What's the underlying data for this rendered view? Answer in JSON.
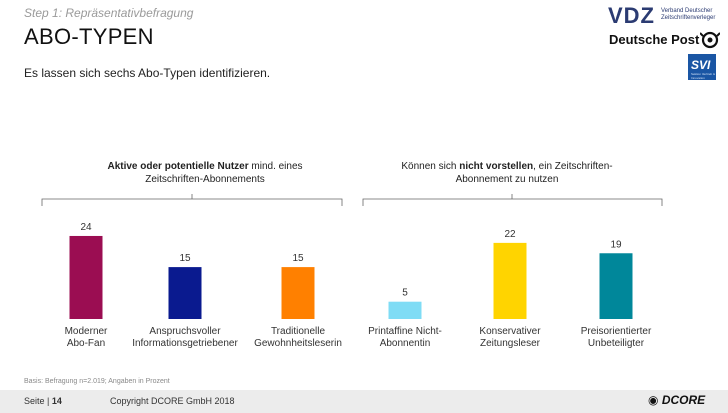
{
  "header": {
    "step": "Step 1: Repräsentativbefragung",
    "title": "ABO-TYPEN",
    "subtitle": "Es lassen sich sechs Abo-Typen identifizieren."
  },
  "logos": {
    "vdz": "VDZ",
    "vdz_sub_line1": "Verband Deutscher",
    "vdz_sub_line2": "Zeitschriftenverleger",
    "deutsche_post": "Deutsche Post",
    "svi": "SVI",
    "svi_sub": "Sektion Vertrieb & Innovation"
  },
  "groups": {
    "left_bold": "Aktive oder potentielle Nutzer",
    "left_rest_line1": " mind. eines",
    "left_line2": "Zeitschriften-Abonnements",
    "right_pre": "Können sich ",
    "right_bold": "nicht vorstellen",
    "right_rest_line1": ", ein Zeitschriften-",
    "right_line2": "Abonnement zu nutzen"
  },
  "chart_data": {
    "type": "bar",
    "categories": [
      [
        "Moderner",
        "Abo-Fan"
      ],
      [
        "Anspruchsvoller",
        "Informationsgetriebener"
      ],
      [
        "Traditionelle",
        "Gewohnheitsleserin"
      ],
      [
        "Printaffine Nicht-",
        "Abonnentin"
      ],
      [
        "Konservativer",
        "Zeitungsleser"
      ],
      [
        "Preisorientierter",
        "Unbeteiligter"
      ]
    ],
    "values": [
      24,
      15,
      15,
      5,
      22,
      19
    ],
    "colors": [
      "#9b0d52",
      "#0a1a8f",
      "#ff8000",
      "#7fdcf5",
      "#ffd400",
      "#00879a"
    ]
  },
  "footer": {
    "basis": "Basis: Befragung n=2.019; Angaben in Prozent",
    "page_label": "Seite | ",
    "page_number": "14",
    "copyright": "Copyright DCORE GmbH 2018",
    "brand": "DCORE"
  }
}
